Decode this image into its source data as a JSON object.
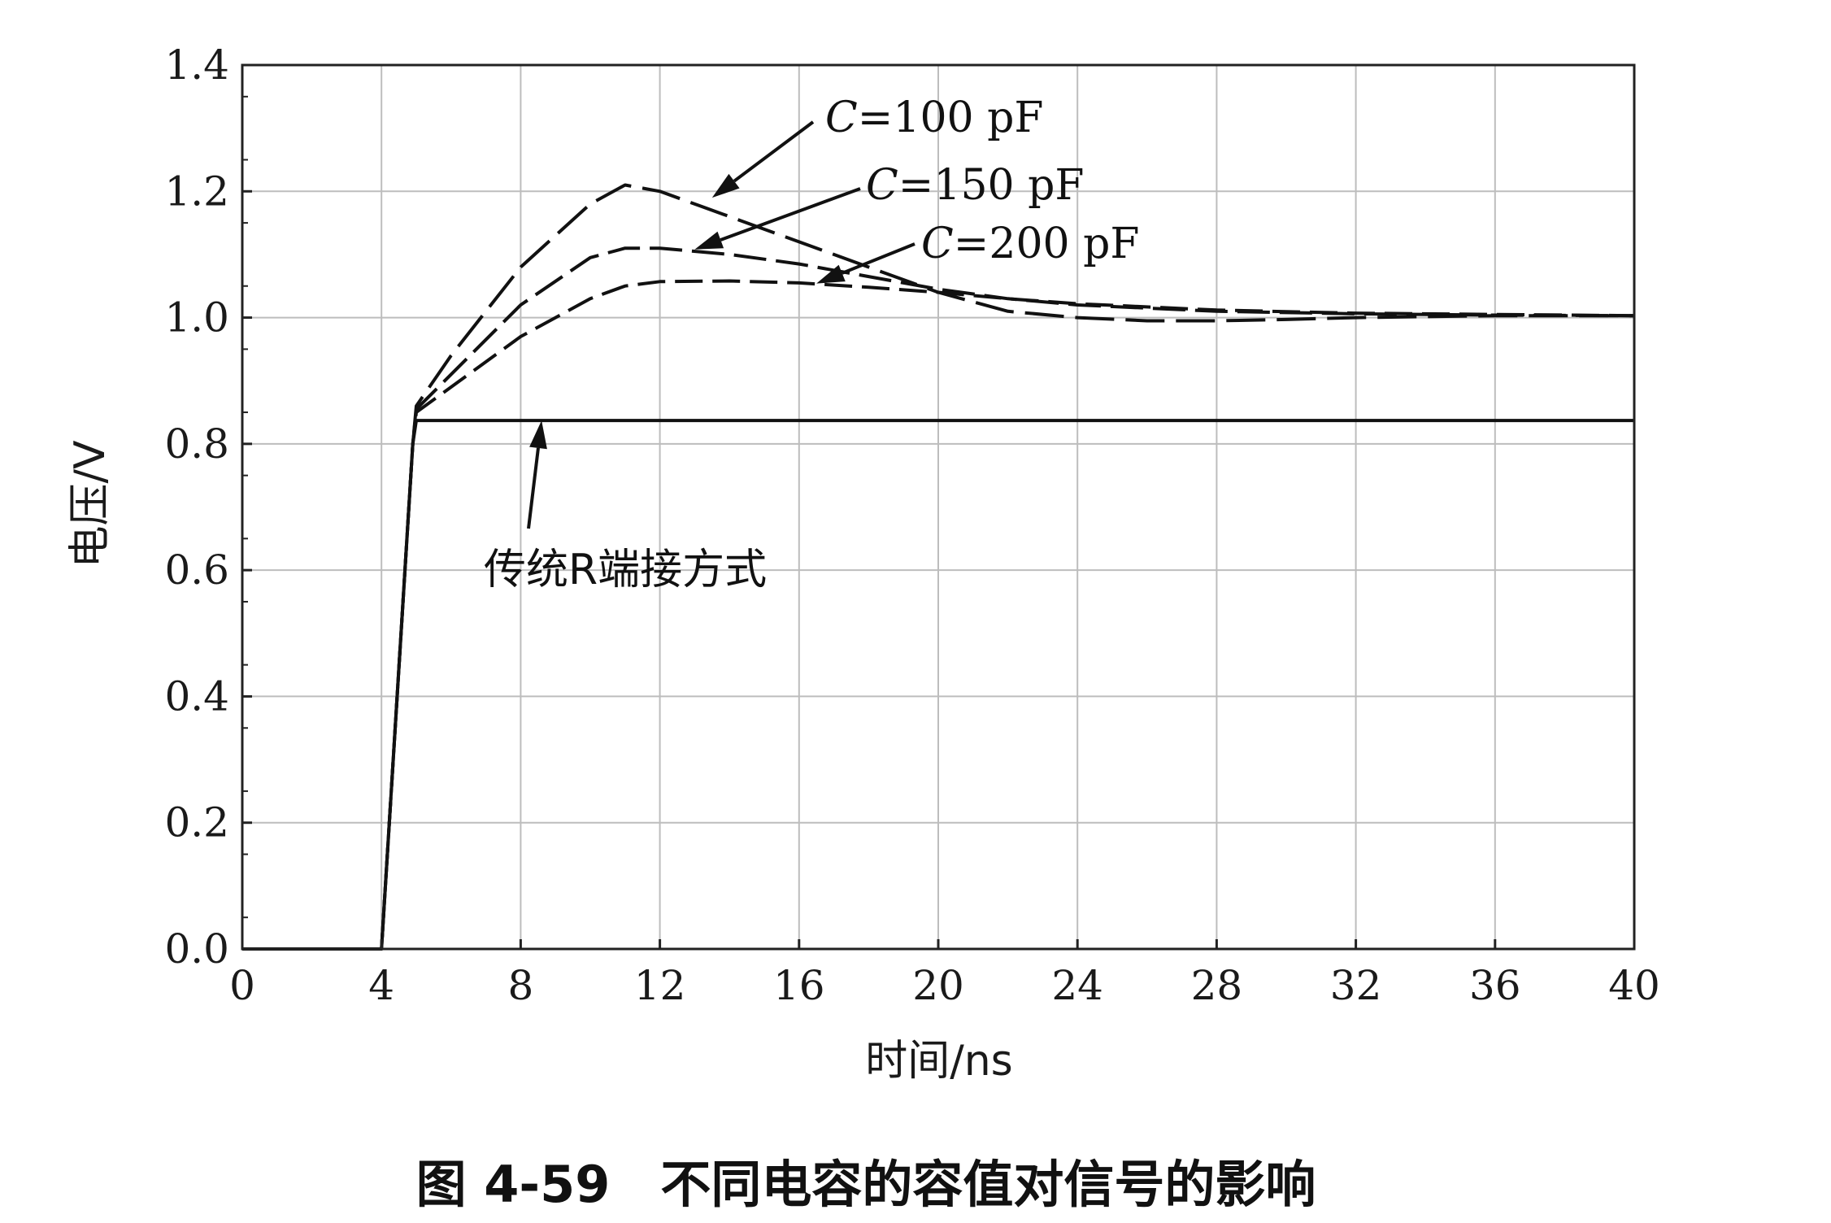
{
  "chart_data": {
    "type": "line",
    "xlabel": "时间/ns",
    "ylabel": "电压/V",
    "caption": "图 4-59　不同电容的容值对信号的影响",
    "xlim": [
      0,
      40
    ],
    "ylim": [
      0,
      1.4
    ],
    "x_ticks": [
      "0",
      "4",
      "8",
      "12",
      "16",
      "20",
      "24",
      "28",
      "32",
      "36",
      "40"
    ],
    "y_ticks": [
      "0.0",
      "0.2",
      "0.4",
      "0.6",
      "0.8",
      "1.0",
      "1.2",
      "1.4"
    ],
    "grid": true,
    "series": [
      {
        "name": "传统R端接方式",
        "style": "solid",
        "x": [
          0,
          4.0,
          4.9,
          5.0,
          40
        ],
        "y": [
          0,
          0,
          0.8,
          0.837,
          0.837
        ]
      },
      {
        "name": "C=100 pF",
        "style": "dashed",
        "x": [
          0,
          4.0,
          4.9,
          5.0,
          6,
          8,
          10,
          11,
          12,
          14,
          16,
          18,
          20,
          22,
          24,
          26,
          28,
          30,
          32,
          36,
          40
        ],
        "y": [
          0,
          0,
          0.8,
          0.86,
          0.94,
          1.08,
          1.18,
          1.21,
          1.2,
          1.16,
          1.12,
          1.08,
          1.04,
          1.01,
          1.0,
          0.995,
          0.995,
          0.997,
          1.0,
          1.003,
          1.003
        ]
      },
      {
        "name": "C=150 pF",
        "style": "dashed",
        "x": [
          0,
          4.0,
          4.9,
          5.0,
          6,
          8,
          10,
          11,
          12,
          14,
          16,
          18,
          20,
          22,
          24,
          26,
          28,
          32,
          36,
          40
        ],
        "y": [
          0,
          0,
          0.8,
          0.855,
          0.91,
          1.02,
          1.095,
          1.11,
          1.11,
          1.1,
          1.085,
          1.065,
          1.045,
          1.03,
          1.02,
          1.015,
          1.01,
          1.006,
          1.004,
          1.003
        ]
      },
      {
        "name": "C=200 pF",
        "style": "dashed",
        "x": [
          0,
          4.0,
          4.9,
          5.0,
          6,
          8,
          10,
          11,
          12,
          14,
          16,
          18,
          20,
          22,
          24,
          28,
          32,
          36,
          40
        ],
        "y": [
          0,
          0,
          0.8,
          0.85,
          0.89,
          0.97,
          1.03,
          1.05,
          1.057,
          1.058,
          1.055,
          1.048,
          1.04,
          1.03,
          1.022,
          1.012,
          1.007,
          1.005,
          1.003
        ]
      }
    ],
    "annotations": [
      {
        "series_index": 1,
        "label_prefix": "C",
        "label_suffix": "=100 pF",
        "arrow_to": [
          13.5,
          1.19
        ]
      },
      {
        "series_index": 2,
        "label_prefix": "C",
        "label_suffix": "=150 pF",
        "arrow_to": [
          13.0,
          1.108
        ]
      },
      {
        "series_index": 3,
        "label_prefix": "C",
        "label_suffix": "=200 pF",
        "arrow_to": [
          16.5,
          1.054
        ]
      },
      {
        "series_index": 0,
        "label": "传统R端接方式",
        "arrow_to": [
          8.6,
          0.837
        ]
      }
    ]
  }
}
